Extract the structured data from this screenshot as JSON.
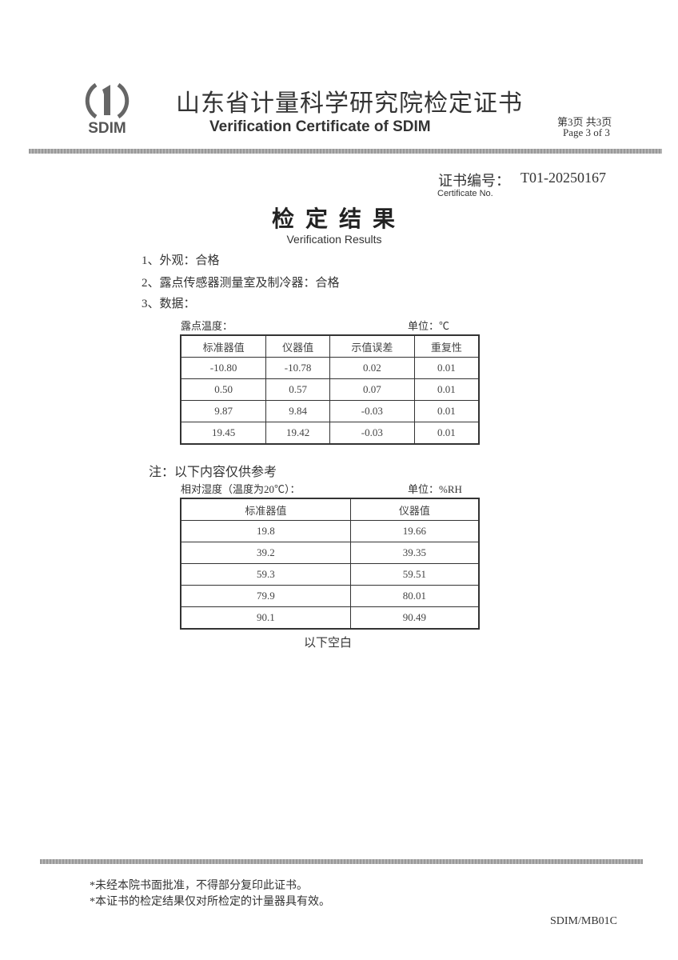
{
  "header": {
    "logo_text": "SDIM",
    "title_cn": "山东省计量科学研究院检定证书",
    "title_en": "Verification Certificate of SDIM",
    "page_cn": "第3页 共3页",
    "page_en": "Page 3 of 3"
  },
  "certificate": {
    "label_cn": "证书编号：",
    "number": "T01-20250167",
    "label_en": "Certificate No."
  },
  "results": {
    "title_cn": "检定结果",
    "title_en": "Verification Results",
    "items": [
      "1、外观：合格",
      "2、露点传感器测量室及制冷器：合格",
      "3、数据："
    ]
  },
  "table1": {
    "caption": "露点温度：",
    "unit": "单位：℃",
    "headers": [
      "标准器值",
      "仪器值",
      "示值误差",
      "重复性"
    ],
    "rows": [
      [
        "-10.80",
        "-10.78",
        "0.02",
        "0.01"
      ],
      [
        "0.50",
        "0.57",
        "0.07",
        "0.01"
      ],
      [
        "9.87",
        "9.84",
        "-0.03",
        "0.01"
      ],
      [
        "19.45",
        "19.42",
        "-0.03",
        "0.01"
      ]
    ]
  },
  "note": "注：以下内容仅供参考",
  "table2": {
    "caption": "相对湿度（温度为20℃）：",
    "unit": "单位：%RH",
    "headers": [
      "标准器值",
      "仪器值"
    ],
    "rows": [
      [
        "19.8",
        "19.66"
      ],
      [
        "39.2",
        "39.35"
      ],
      [
        "59.3",
        "59.51"
      ],
      [
        "79.9",
        "80.01"
      ],
      [
        "90.1",
        "90.49"
      ]
    ]
  },
  "end_text": "以下空白",
  "footer": {
    "note1": "*未经本院书面批准，不得部分复印此证书。",
    "note2": "*本证书的检定结果仅对所检定的计量器具有效。",
    "code": "SDIM/MB01C"
  }
}
